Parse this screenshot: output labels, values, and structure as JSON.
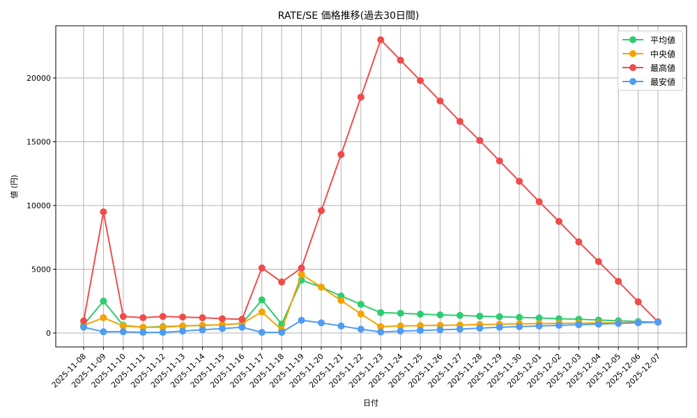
{
  "chart_data": {
    "type": "line",
    "title": "RATE/SE 価格推移(過去30日間)",
    "xlabel": "日付",
    "ylabel": "値 (円)",
    "ylim": [
      -1100,
      24000
    ],
    "yticks": [
      0,
      5000,
      10000,
      15000,
      20000
    ],
    "grid": true,
    "legend_position": "upper right",
    "categories": [
      "2025-11-08",
      "2025-11-09",
      "2025-11-10",
      "2025-11-11",
      "2025-11-12",
      "2025-11-13",
      "2025-11-14",
      "2025-11-15",
      "2025-11-16",
      "2025-11-17",
      "2025-11-18",
      "2025-11-19",
      "2025-11-20",
      "2025-11-21",
      "2025-11-22",
      "2025-11-23",
      "2025-11-24",
      "2025-11-25",
      "2025-11-26",
      "2025-11-27",
      "2025-11-28",
      "2025-11-29",
      "2025-11-30",
      "2025-12-01",
      "2025-12-02",
      "2025-12-03",
      "2025-12-04",
      "2025-12-05",
      "2025-12-06",
      "2025-12-07"
    ],
    "series": [
      {
        "name": "平均値",
        "color": "#2ecc71",
        "values": [
          650,
          2500,
          600,
          450,
          500,
          550,
          600,
          650,
          750,
          2600,
          700,
          4150,
          3600,
          2900,
          2250,
          1600,
          1550,
          1480,
          1420,
          1380,
          1320,
          1280,
          1230,
          1180,
          1120,
          1080,
          1020,
          960,
          900,
          850
        ]
      },
      {
        "name": "中央値",
        "color": "#f5a300",
        "values": [
          600,
          1200,
          550,
          450,
          450,
          550,
          600,
          650,
          750,
          1650,
          250,
          4600,
          3600,
          2550,
          1500,
          500,
          550,
          580,
          600,
          620,
          660,
          690,
          720,
          740,
          760,
          780,
          790,
          800,
          830,
          850
        ]
      },
      {
        "name": "最高値",
        "color": "#f04b4b",
        "values": [
          950,
          9500,
          1300,
          1200,
          1300,
          1250,
          1200,
          1120,
          1080,
          5100,
          4000,
          5100,
          9600,
          14000,
          18500,
          23000,
          21400,
          19800,
          18200,
          16600,
          15100,
          13500,
          11900,
          10300,
          8750,
          7150,
          5600,
          4050,
          2450,
          880
        ]
      },
      {
        "name": "最安値",
        "color": "#4f9cf5",
        "values": [
          450,
          100,
          100,
          50,
          50,
          150,
          250,
          350,
          450,
          50,
          50,
          1000,
          800,
          550,
          300,
          80,
          150,
          200,
          250,
          300,
          380,
          450,
          500,
          550,
          600,
          650,
          700,
          750,
          800,
          850
        ]
      }
    ]
  },
  "legend": {
    "items": [
      {
        "label": "平均値",
        "color": "#2ecc71"
      },
      {
        "label": "中央値",
        "color": "#f5a300"
      },
      {
        "label": "最高値",
        "color": "#f04b4b"
      },
      {
        "label": "最安値",
        "color": "#4f9cf5"
      }
    ]
  }
}
